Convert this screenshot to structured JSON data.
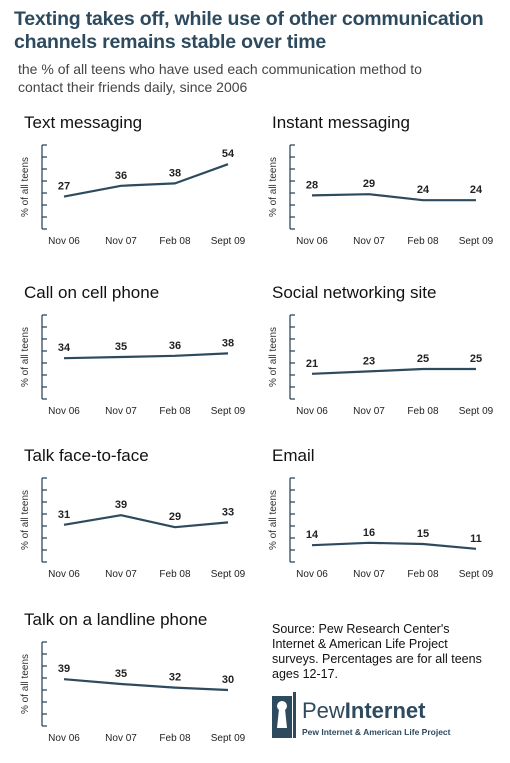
{
  "title_line1": "Texting takes off, while use of other communication",
  "title_line2": "channels remains stable over time",
  "subtitle_line1": "the % of all teens who have used each communication method to",
  "subtitle_line2": "contact their friends daily, since 2006",
  "colors": {
    "line": "#2e4a5e",
    "axis": "#2e4a5e",
    "title": "#2e4a5e"
  },
  "chart_data": [
    {
      "type": "line",
      "title": "Text messaging",
      "ylabel": "% of all teens",
      "categories": [
        "Nov 06",
        "Nov 07",
        "Feb 08",
        "Sept 09"
      ],
      "values": [
        27,
        36,
        38,
        54
      ],
      "ylim": [
        0,
        70
      ]
    },
    {
      "type": "line",
      "title": "Instant messaging",
      "ylabel": "% of all teens",
      "categories": [
        "Nov 06",
        "Nov 07",
        "Feb 08",
        "Sept 09"
      ],
      "values": [
        28,
        29,
        24,
        24
      ],
      "ylim": [
        0,
        70
      ]
    },
    {
      "type": "line",
      "title": "Call on cell phone",
      "ylabel": "% of all teens",
      "categories": [
        "Nov 06",
        "Nov 07",
        "Feb 08",
        "Sept 09"
      ],
      "values": [
        34,
        35,
        36,
        38
      ],
      "ylim": [
        0,
        70
      ]
    },
    {
      "type": "line",
      "title": "Social networking site",
      "ylabel": "% of all teens",
      "categories": [
        "Nov 06",
        "Nov 07",
        "Feb 08",
        "Sept 09"
      ],
      "values": [
        21,
        23,
        25,
        25
      ],
      "ylim": [
        0,
        70
      ]
    },
    {
      "type": "line",
      "title": "Talk face-to-face",
      "ylabel": "% of all teens",
      "categories": [
        "Nov 06",
        "Nov 07",
        "Feb 08",
        "Sept 09"
      ],
      "values": [
        31,
        39,
        29,
        33
      ],
      "ylim": [
        0,
        70
      ]
    },
    {
      "type": "line",
      "title": "Email",
      "ylabel": "% of all teens",
      "categories": [
        "Nov 06",
        "Nov 07",
        "Feb 08",
        "Sept 09"
      ],
      "values": [
        14,
        16,
        15,
        11
      ],
      "ylim": [
        0,
        70
      ]
    },
    {
      "type": "line",
      "title": "Talk on a landline phone",
      "ylabel": "% of all teens",
      "categories": [
        "Nov 06",
        "Nov 07",
        "Feb 08",
        "Sept 09"
      ],
      "values": [
        39,
        35,
        32,
        30
      ],
      "ylim": [
        0,
        70
      ]
    }
  ],
  "source_text": "Source: Pew Research Center's Internet & American Life Project surveys. Percentages are for all teens ages 12-17.",
  "logo": {
    "word_plain": "Pew",
    "word_bold": "Internet",
    "sub": "Pew Internet & American Life Project"
  }
}
